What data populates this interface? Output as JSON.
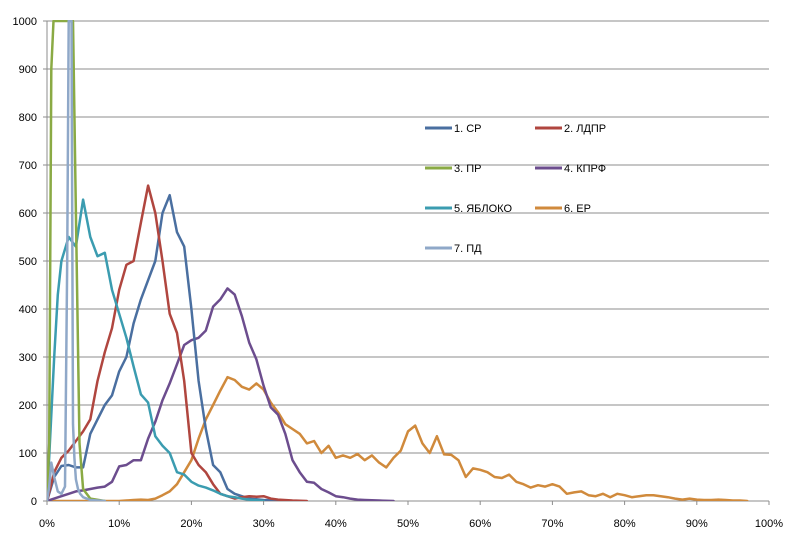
{
  "chart_data": {
    "type": "line",
    "title": "",
    "xlabel": "",
    "ylabel": "",
    "xlim": [
      0,
      100
    ],
    "ylim": [
      0,
      1000
    ],
    "x_ticks": [
      "0%",
      "10%",
      "20%",
      "30%",
      "40%",
      "50%",
      "60%",
      "70%",
      "80%",
      "90%",
      "100%"
    ],
    "y_ticks": [
      "0",
      "100",
      "200",
      "300",
      "400",
      "500",
      "600",
      "700",
      "800",
      "900",
      "1000"
    ],
    "grid": "horizontal",
    "legend_position": "inside-top-center",
    "series": [
      {
        "name": "1. СР",
        "color": "#4a6fa0",
        "x": [
          0,
          1,
          2,
          3,
          4,
          5,
          6,
          7,
          8,
          9,
          10,
          11,
          12,
          13,
          14,
          15,
          16,
          17,
          18,
          19,
          20,
          21,
          22,
          23,
          24,
          25,
          26,
          27,
          28,
          30,
          35
        ],
        "y": [
          0,
          50,
          73,
          75,
          70,
          70,
          140,
          170,
          200,
          220,
          270,
          300,
          370,
          420,
          460,
          500,
          600,
          637,
          560,
          530,
          400,
          250,
          150,
          75,
          60,
          25,
          15,
          10,
          5,
          2,
          0
        ]
      },
      {
        "name": "2. ЛДПР",
        "color": "#b0463f",
        "x": [
          0,
          1,
          2,
          3,
          4,
          5,
          6,
          7,
          8,
          9,
          10,
          11,
          12,
          13,
          14,
          15,
          16,
          17,
          18,
          19,
          20,
          21,
          22,
          23,
          24,
          25,
          26,
          27,
          28,
          29,
          30,
          31,
          32,
          34,
          36
        ],
        "y": [
          0,
          60,
          90,
          105,
          125,
          145,
          170,
          250,
          310,
          360,
          440,
          492,
          500,
          580,
          657,
          600,
          500,
          390,
          350,
          250,
          100,
          75,
          60,
          35,
          15,
          10,
          5,
          8,
          10,
          9,
          10,
          5,
          3,
          1,
          0
        ]
      },
      {
        "name": "3. ПР",
        "color": "#8aaa44",
        "x": [
          0,
          0.3,
          0.6,
          0.9,
          1.2,
          1.6,
          2.0,
          2.4,
          2.8,
          3.2,
          3.6,
          4.0,
          4.5,
          5.0,
          6.0,
          8.0
        ],
        "y": [
          0,
          120,
          900,
          1000,
          1000,
          1000,
          1000,
          1000,
          1000,
          1000,
          1000,
          600,
          120,
          25,
          5,
          0
        ]
      },
      {
        "name": "4. КПРФ",
        "color": "#6c4d8e",
        "x": [
          0,
          1,
          2,
          3,
          4,
          5,
          6,
          7,
          8,
          9,
          10,
          11,
          12,
          13,
          14,
          15,
          16,
          17,
          18,
          19,
          20,
          21,
          22,
          23,
          24,
          25,
          26,
          27,
          28,
          29,
          30,
          31,
          32,
          33,
          34,
          35,
          36,
          37,
          38,
          39,
          40,
          41,
          42,
          43,
          44,
          46,
          48
        ],
        "y": [
          0,
          5,
          10,
          15,
          20,
          22,
          25,
          28,
          30,
          40,
          72,
          75,
          85,
          85,
          130,
          165,
          210,
          245,
          285,
          325,
          335,
          340,
          355,
          405,
          420,
          443,
          430,
          385,
          330,
          295,
          240,
          195,
          180,
          140,
          85,
          60,
          40,
          38,
          25,
          18,
          10,
          8,
          5,
          3,
          2,
          1,
          0
        ]
      },
      {
        "name": "5. ЯБЛОКО",
        "color": "#3b9cb0",
        "x": [
          0,
          0.5,
          1,
          1.5,
          2,
          3,
          4,
          5,
          6,
          7,
          8,
          9,
          10,
          11,
          12,
          13,
          14,
          15,
          16,
          17,
          18,
          19,
          20,
          21,
          22,
          23,
          24,
          25,
          26,
          27,
          28,
          30
        ],
        "y": [
          0,
          150,
          300,
          430,
          500,
          550,
          530,
          628,
          550,
          510,
          517,
          440,
          390,
          340,
          280,
          222,
          205,
          135,
          115,
          100,
          60,
          55,
          40,
          32,
          28,
          22,
          15,
          10,
          8,
          5,
          3,
          0
        ]
      },
      {
        "name": "6. ЕР",
        "color": "#d08a3c",
        "x": [
          0,
          10,
          12,
          13,
          14,
          15,
          16,
          17,
          18,
          19,
          20,
          21,
          22,
          23,
          24,
          25,
          26,
          27,
          28,
          29,
          30,
          31,
          32,
          33,
          34,
          35,
          36,
          37,
          38,
          39,
          40,
          41,
          42,
          43,
          44,
          45,
          46,
          47,
          48,
          49,
          50,
          51,
          52,
          53,
          54,
          55,
          56,
          57,
          58,
          59,
          60,
          61,
          62,
          63,
          64,
          65,
          66,
          67,
          68,
          69,
          70,
          71,
          72,
          73,
          74,
          75,
          76,
          77,
          78,
          79,
          80,
          81,
          82,
          83,
          84,
          85,
          86,
          87,
          88,
          89,
          90,
          91,
          92,
          93,
          94,
          95,
          96,
          97
        ],
        "y": [
          0,
          0,
          2,
          3,
          2,
          5,
          12,
          20,
          35,
          60,
          85,
          130,
          170,
          200,
          230,
          258,
          252,
          238,
          232,
          245,
          232,
          205,
          185,
          160,
          150,
          140,
          120,
          125,
          100,
          115,
          90,
          95,
          90,
          98,
          85,
          95,
          80,
          70,
          90,
          105,
          145,
          157,
          120,
          100,
          135,
          97,
          96,
          85,
          50,
          68,
          65,
          60,
          50,
          48,
          55,
          40,
          35,
          28,
          33,
          30,
          35,
          30,
          15,
          18,
          20,
          12,
          10,
          15,
          8,
          15,
          12,
          8,
          10,
          12,
          12,
          10,
          8,
          5,
          3,
          5,
          3,
          2,
          2,
          3,
          2,
          1,
          1,
          0
        ]
      },
      {
        "name": "7. ПД",
        "color": "#8fa8c8",
        "x": [
          0,
          0.3,
          0.6,
          1.0,
          1.5,
          2.0,
          2.5,
          2.8,
          3.0,
          3.2,
          3.4,
          3.6,
          3.8,
          4.0,
          4.3,
          4.6,
          5.0,
          6.0,
          8.0
        ],
        "y": [
          0,
          30,
          80,
          50,
          20,
          15,
          30,
          500,
          1000,
          1000,
          1000,
          160,
          90,
          45,
          25,
          15,
          8,
          2,
          0
        ]
      }
    ]
  }
}
